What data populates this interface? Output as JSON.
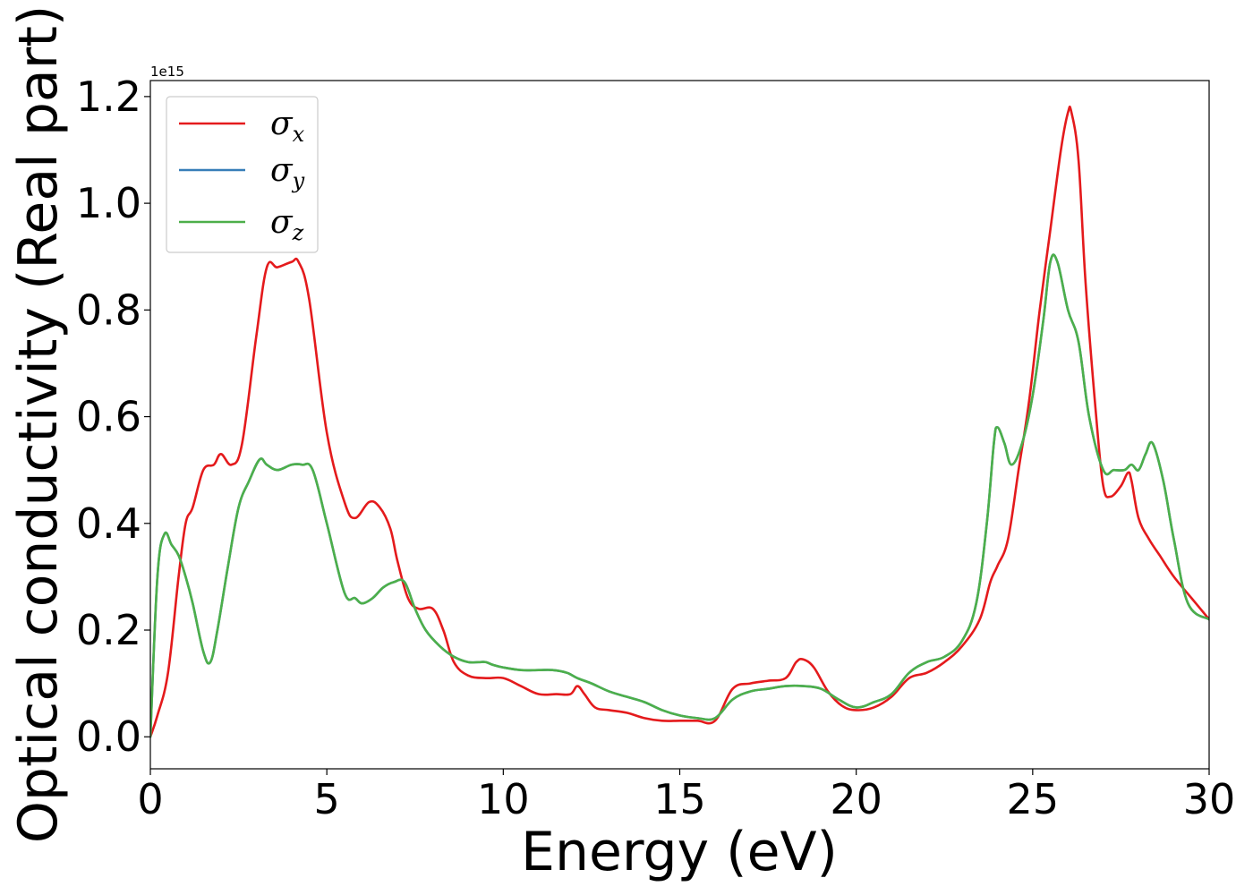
{
  "chart_data": {
    "type": "line",
    "xlabel": "Energy (eV)",
    "ylabel": "Optical conductivity (Real part)",
    "y_offset_text": "1e15",
    "y_scale_factor": 1000000000000000.0,
    "xlim": [
      0,
      30
    ],
    "ylim": [
      -0.06,
      1.23
    ],
    "x_ticks": [
      0,
      5,
      10,
      15,
      20,
      25,
      30
    ],
    "x_tick_labels": [
      "0",
      "5",
      "10",
      "15",
      "20",
      "25",
      "30"
    ],
    "y_ticks": [
      0.0,
      0.2,
      0.4,
      0.6,
      0.8,
      1.0,
      1.2
    ],
    "y_tick_labels": [
      "0.0",
      "0.2",
      "0.4",
      "0.6",
      "0.8",
      "1.0",
      "1.2"
    ],
    "grid": false,
    "legend_position": "top-left",
    "series": [
      {
        "name": "σx",
        "legend_base": "σ",
        "legend_sub": "x",
        "color": "#e41a1c",
        "x": [
          0,
          0.2,
          0.5,
          0.8,
          1.0,
          1.2,
          1.5,
          1.8,
          2.0,
          2.3,
          2.6,
          3.0,
          3.3,
          3.6,
          4.0,
          4.2,
          4.5,
          5.0,
          5.5,
          5.8,
          6.2,
          6.5,
          6.8,
          7.0,
          7.3,
          7.6,
          8.0,
          8.3,
          8.6,
          9.0,
          9.5,
          10.0,
          10.5,
          11.0,
          11.5,
          11.9,
          12.1,
          12.3,
          12.6,
          13.0,
          13.5,
          14.0,
          14.5,
          15.0,
          15.5,
          16.0,
          16.5,
          17.0,
          17.5,
          18.0,
          18.3,
          18.5,
          18.8,
          19.2,
          19.6,
          20.0,
          20.5,
          21.0,
          21.5,
          22.0,
          22.5,
          23.0,
          23.5,
          23.8,
          24.0,
          24.3,
          24.6,
          24.9,
          25.2,
          25.5,
          25.8,
          26.0,
          26.1,
          26.3,
          26.5,
          26.8,
          27.0,
          27.2,
          27.5,
          27.7,
          27.8,
          28.0,
          28.3,
          28.6,
          29.0,
          29.5,
          30.0
        ],
        "values": [
          0.0,
          0.04,
          0.12,
          0.3,
          0.4,
          0.43,
          0.5,
          0.51,
          0.53,
          0.51,
          0.55,
          0.75,
          0.88,
          0.88,
          0.89,
          0.89,
          0.82,
          0.57,
          0.44,
          0.41,
          0.44,
          0.43,
          0.39,
          0.33,
          0.26,
          0.24,
          0.24,
          0.2,
          0.14,
          0.115,
          0.11,
          0.11,
          0.095,
          0.08,
          0.08,
          0.08,
          0.095,
          0.08,
          0.055,
          0.05,
          0.045,
          0.035,
          0.03,
          0.03,
          0.03,
          0.03,
          0.09,
          0.1,
          0.105,
          0.11,
          0.14,
          0.145,
          0.13,
          0.085,
          0.058,
          0.05,
          0.055,
          0.075,
          0.11,
          0.12,
          0.14,
          0.17,
          0.22,
          0.29,
          0.32,
          0.37,
          0.5,
          0.63,
          0.8,
          0.95,
          1.1,
          1.17,
          1.17,
          1.08,
          0.85,
          0.6,
          0.47,
          0.45,
          0.47,
          0.495,
          0.48,
          0.41,
          0.37,
          0.34,
          0.3,
          0.26,
          0.22
        ]
      },
      {
        "name": "σy",
        "legend_base": "σ",
        "legend_sub": "y",
        "color": "#377eb8",
        "x": [
          0,
          0.2,
          0.4,
          0.6,
          0.8,
          1.0,
          1.2,
          1.5,
          1.7,
          1.9,
          2.2,
          2.5,
          2.8,
          3.1,
          3.3,
          3.6,
          4.0,
          4.3,
          4.6,
          5.0,
          5.5,
          5.8,
          6.0,
          6.3,
          6.6,
          6.9,
          7.2,
          7.5,
          7.8,
          8.2,
          8.6,
          9.0,
          9.3,
          9.5,
          9.7,
          10.0,
          10.5,
          11.0,
          11.4,
          11.8,
          12.1,
          12.5,
          13.0,
          13.5,
          14.0,
          14.5,
          15.0,
          15.5,
          16.0,
          16.5,
          17.0,
          17.5,
          18.0,
          18.5,
          19.0,
          19.5,
          20.0,
          20.5,
          21.0,
          21.5,
          22.0,
          22.5,
          23.0,
          23.4,
          23.7,
          23.9,
          24.0,
          24.2,
          24.4,
          24.7,
          25.0,
          25.3,
          25.5,
          25.7,
          26.0,
          26.3,
          26.6,
          27.0,
          27.3,
          27.6,
          27.8,
          28.0,
          28.2,
          28.4,
          28.7,
          29.0,
          29.4,
          30.0
        ],
        "values": [
          0.0,
          0.3,
          0.38,
          0.36,
          0.34,
          0.3,
          0.25,
          0.16,
          0.14,
          0.2,
          0.32,
          0.43,
          0.48,
          0.52,
          0.51,
          0.5,
          0.51,
          0.51,
          0.5,
          0.4,
          0.27,
          0.26,
          0.25,
          0.26,
          0.28,
          0.29,
          0.29,
          0.24,
          0.2,
          0.17,
          0.15,
          0.14,
          0.14,
          0.14,
          0.135,
          0.13,
          0.125,
          0.125,
          0.125,
          0.12,
          0.11,
          0.1,
          0.085,
          0.075,
          0.065,
          0.05,
          0.04,
          0.035,
          0.035,
          0.07,
          0.085,
          0.09,
          0.095,
          0.095,
          0.09,
          0.07,
          0.055,
          0.065,
          0.08,
          0.12,
          0.14,
          0.15,
          0.18,
          0.25,
          0.4,
          0.55,
          0.58,
          0.55,
          0.51,
          0.55,
          0.64,
          0.78,
          0.89,
          0.89,
          0.8,
          0.74,
          0.6,
          0.5,
          0.5,
          0.5,
          0.51,
          0.5,
          0.53,
          0.55,
          0.48,
          0.37,
          0.25,
          0.22
        ]
      },
      {
        "name": "σz",
        "legend_base": "σ",
        "legend_sub": "z",
        "color": "#4daf4a",
        "x": [
          0,
          0.2,
          0.4,
          0.6,
          0.8,
          1.0,
          1.2,
          1.5,
          1.7,
          1.9,
          2.2,
          2.5,
          2.8,
          3.1,
          3.3,
          3.6,
          4.0,
          4.3,
          4.6,
          5.0,
          5.5,
          5.8,
          6.0,
          6.3,
          6.6,
          6.9,
          7.2,
          7.5,
          7.8,
          8.2,
          8.6,
          9.0,
          9.3,
          9.5,
          9.7,
          10.0,
          10.5,
          11.0,
          11.4,
          11.8,
          12.1,
          12.5,
          13.0,
          13.5,
          14.0,
          14.5,
          15.0,
          15.5,
          16.0,
          16.5,
          17.0,
          17.5,
          18.0,
          18.5,
          19.0,
          19.5,
          20.0,
          20.5,
          21.0,
          21.5,
          22.0,
          22.5,
          23.0,
          23.4,
          23.7,
          23.9,
          24.0,
          24.2,
          24.4,
          24.7,
          25.0,
          25.3,
          25.5,
          25.7,
          26.0,
          26.3,
          26.6,
          27.0,
          27.3,
          27.6,
          27.8,
          28.0,
          28.2,
          28.4,
          28.7,
          29.0,
          29.4,
          30.0
        ],
        "values": [
          0.0,
          0.3,
          0.38,
          0.36,
          0.34,
          0.3,
          0.25,
          0.16,
          0.14,
          0.2,
          0.32,
          0.43,
          0.48,
          0.52,
          0.51,
          0.5,
          0.51,
          0.51,
          0.5,
          0.4,
          0.27,
          0.26,
          0.25,
          0.26,
          0.28,
          0.29,
          0.29,
          0.24,
          0.2,
          0.17,
          0.15,
          0.14,
          0.14,
          0.14,
          0.135,
          0.13,
          0.125,
          0.125,
          0.125,
          0.12,
          0.11,
          0.1,
          0.085,
          0.075,
          0.065,
          0.05,
          0.04,
          0.035,
          0.035,
          0.07,
          0.085,
          0.09,
          0.095,
          0.095,
          0.09,
          0.07,
          0.055,
          0.065,
          0.08,
          0.12,
          0.14,
          0.15,
          0.18,
          0.25,
          0.4,
          0.55,
          0.58,
          0.55,
          0.51,
          0.55,
          0.64,
          0.78,
          0.89,
          0.89,
          0.8,
          0.74,
          0.6,
          0.5,
          0.5,
          0.5,
          0.51,
          0.5,
          0.53,
          0.55,
          0.48,
          0.37,
          0.25,
          0.22
        ]
      }
    ]
  }
}
